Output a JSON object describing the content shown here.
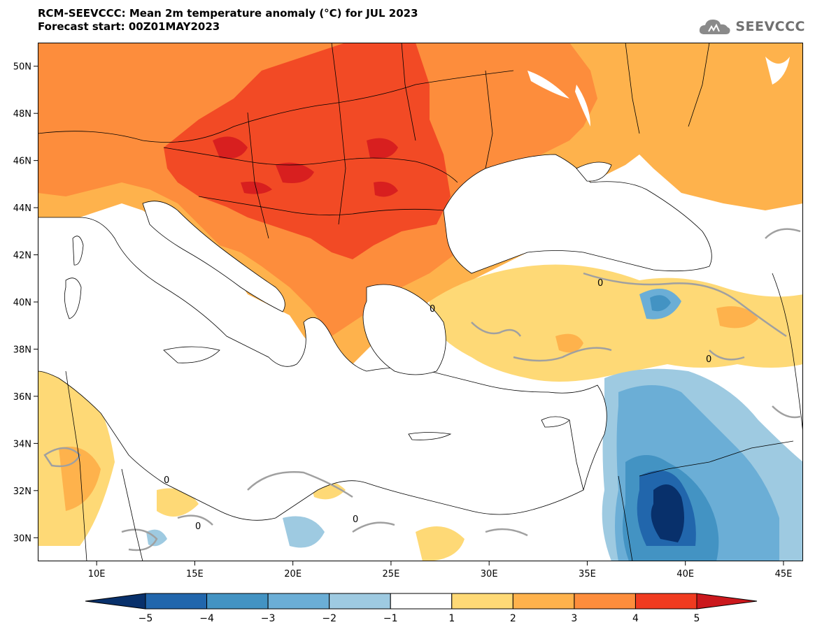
{
  "header": {
    "title": "RCM-SEEVCCC: Mean 2m temperature anomaly (°C) for JUL 2023",
    "subtitle": "Forecast start: 00Z01MAY2023"
  },
  "logo": {
    "text": "SEEVCCC",
    "icon": "cloud-icon"
  },
  "map": {
    "lon_range": [
      7,
      46
    ],
    "lat_range": [
      29,
      51
    ],
    "lon_ticks": [
      "10E",
      "15E",
      "20E",
      "25E",
      "30E",
      "35E",
      "40E",
      "45E"
    ],
    "lat_ticks": [
      "50N",
      "48N",
      "46N",
      "44N",
      "42N",
      "40N",
      "38N",
      "36N",
      "34N",
      "32N",
      "30N"
    ],
    "contour_label": "0"
  },
  "colorbar": {
    "levels": [
      "−5",
      "−4",
      "−3",
      "−2",
      "−1",
      "1",
      "2",
      "3",
      "4",
      "5"
    ],
    "colors": [
      "#08306b",
      "#2166ac",
      "#4393c3",
      "#6baed6",
      "#9ecae1",
      "#ffffff",
      "#fed976",
      "#feb24c",
      "#fd8d3c",
      "#f03b20",
      "#cb181d"
    ]
  }
}
